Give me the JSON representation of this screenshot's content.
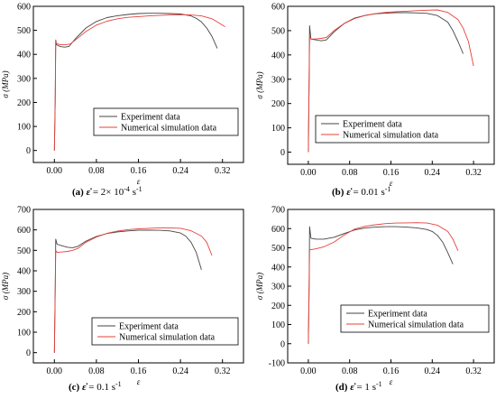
{
  "colors": {
    "experiment": "#444444",
    "simulation": "#e8403a",
    "axis": "#000000"
  },
  "chart_data": [
    {
      "type": "line",
      "xlabel": "ε",
      "ylabel": "σ (MPa)",
      "xlim": [
        -0.04,
        0.36
      ],
      "ylim": [
        -50,
        600
      ],
      "xticks": [
        0.0,
        0.08,
        0.16,
        0.24,
        0.32
      ],
      "xtick_labels": [
        "0.00",
        "0.08",
        "0.16",
        "0.24",
        "0.32"
      ],
      "yticks": [
        0,
        100,
        200,
        300,
        400,
        500,
        600
      ],
      "ytick_labels": [
        "0",
        "100",
        "200",
        "300",
        "400",
        "500",
        "600"
      ],
      "grid": false,
      "legend_position": "bottom-right",
      "caption": {
        "letter": "(a)",
        "symbol": "ε̇",
        "text": "= 2× 10",
        "sup": "-4",
        "unit": "s",
        "unit_sup": "-1"
      },
      "series": [
        {
          "name": "Experiment data",
          "color": "experiment",
          "x": [
            0.0,
            0.0015,
            0.0025,
            0.004,
            0.012,
            0.02,
            0.028,
            0.04,
            0.06,
            0.08,
            0.1,
            0.12,
            0.14,
            0.16,
            0.18,
            0.2,
            0.22,
            0.24,
            0.26,
            0.27,
            0.28,
            0.29,
            0.3,
            0.305,
            0.31
          ],
          "y": [
            0,
            200,
            460,
            440,
            432,
            430,
            433,
            465,
            510,
            537,
            553,
            561,
            566,
            570,
            571,
            571,
            570,
            568,
            560,
            550,
            535,
            510,
            475,
            450,
            425
          ]
        },
        {
          "name": "Numerical simulation data",
          "color": "simulation",
          "x": [
            0.0,
            0.0015,
            0.0025,
            0.004,
            0.012,
            0.02,
            0.03,
            0.04,
            0.06,
            0.08,
            0.1,
            0.12,
            0.14,
            0.16,
            0.18,
            0.2,
            0.22,
            0.24,
            0.26,
            0.28,
            0.3,
            0.31,
            0.325
          ],
          "y": [
            0,
            200,
            460,
            445,
            440,
            440,
            443,
            460,
            495,
            522,
            538,
            548,
            554,
            557,
            560,
            562,
            564,
            565,
            564,
            560,
            548,
            535,
            515
          ]
        }
      ]
    },
    {
      "type": "line",
      "xlabel": "ε",
      "ylabel": "σ (MPa)",
      "xlim": [
        -0.04,
        0.36
      ],
      "ylim": [
        -50,
        600
      ],
      "xticks": [
        0.0,
        0.08,
        0.16,
        0.24,
        0.32
      ],
      "xtick_labels": [
        "0.00",
        "0.08",
        "0.16",
        "0.24",
        "0.32"
      ],
      "yticks": [
        0,
        100,
        200,
        300,
        400,
        500,
        600
      ],
      "ytick_labels": [
        "0",
        "100",
        "200",
        "300",
        "400",
        "500",
        "600"
      ],
      "grid": false,
      "legend_position": "bottom-right",
      "caption": {
        "letter": "(b)",
        "symbol": "ε̇",
        "text": "= 0.01",
        "sup": "",
        "unit": "s",
        "unit_sup": "-1"
      },
      "series": [
        {
          "name": "Experiment data",
          "color": "experiment",
          "x": [
            0.0,
            0.0015,
            0.0025,
            0.005,
            0.015,
            0.025,
            0.035,
            0.05,
            0.07,
            0.09,
            0.11,
            0.13,
            0.15,
            0.17,
            0.19,
            0.21,
            0.23,
            0.25,
            0.27,
            0.28,
            0.29,
            0.3
          ],
          "y": [
            0,
            300,
            520,
            465,
            462,
            458,
            462,
            495,
            530,
            552,
            563,
            569,
            572,
            574,
            574,
            573,
            571,
            562,
            535,
            500,
            455,
            405
          ]
        },
        {
          "name": "Numerical simulation data",
          "color": "simulation",
          "x": [
            0.0,
            0.0015,
            0.0025,
            0.005,
            0.015,
            0.025,
            0.035,
            0.05,
            0.07,
            0.09,
            0.11,
            0.13,
            0.15,
            0.17,
            0.19,
            0.21,
            0.23,
            0.25,
            0.27,
            0.29,
            0.3,
            0.31,
            0.32
          ],
          "y": [
            0,
            300,
            480,
            465,
            466,
            468,
            472,
            500,
            530,
            550,
            562,
            570,
            575,
            578,
            580,
            582,
            584,
            585,
            575,
            545,
            510,
            455,
            355
          ]
        }
      ]
    },
    {
      "type": "line",
      "xlabel": "ε",
      "ylabel": "σ (MPa)",
      "xlim": [
        -0.04,
        0.36
      ],
      "ylim": [
        -50,
        700
      ],
      "xticks": [
        0.0,
        0.08,
        0.16,
        0.24,
        0.32
      ],
      "xtick_labels": [
        "0.00",
        "0.08",
        "0.16",
        "0.24",
        "0.32"
      ],
      "yticks": [
        0,
        100,
        200,
        300,
        400,
        500,
        600,
        700
      ],
      "ytick_labels": [
        "0",
        "100",
        "200",
        "300",
        "400",
        "500",
        "600",
        "700"
      ],
      "grid": false,
      "legend_position": "bottom-right",
      "caption": {
        "letter": "(c)",
        "symbol": "ε̇",
        "text": "= 0.1",
        "sup": "",
        "unit": "s",
        "unit_sup": "-1"
      },
      "series": [
        {
          "name": "Experiment data",
          "color": "experiment",
          "x": [
            0.0,
            0.0015,
            0.0025,
            0.005,
            0.015,
            0.025,
            0.035,
            0.045,
            0.06,
            0.08,
            0.1,
            0.12,
            0.14,
            0.16,
            0.18,
            0.2,
            0.22,
            0.24,
            0.25,
            0.26,
            0.27,
            0.28
          ],
          "y": [
            0,
            300,
            555,
            530,
            522,
            515,
            513,
            520,
            545,
            568,
            582,
            590,
            595,
            598,
            599,
            598,
            595,
            585,
            570,
            540,
            490,
            405
          ]
        },
        {
          "name": "Numerical simulation data",
          "color": "simulation",
          "x": [
            0.0,
            0.0015,
            0.0025,
            0.005,
            0.015,
            0.025,
            0.035,
            0.045,
            0.06,
            0.08,
            0.1,
            0.12,
            0.14,
            0.16,
            0.18,
            0.2,
            0.22,
            0.24,
            0.26,
            0.28,
            0.29,
            0.3
          ],
          "y": [
            0,
            300,
            500,
            490,
            492,
            495,
            500,
            510,
            540,
            565,
            583,
            594,
            601,
            605,
            608,
            610,
            610,
            608,
            596,
            570,
            540,
            475
          ]
        }
      ]
    },
    {
      "type": "line",
      "xlabel": "ε",
      "ylabel": "σ (MPa)",
      "xlim": [
        -0.04,
        0.36
      ],
      "ylim": [
        -100,
        700
      ],
      "xticks": [
        0.0,
        0.08,
        0.16,
        0.24,
        0.32
      ],
      "xtick_labels": [
        "0.00",
        "0.08",
        "0.16",
        "0.24",
        "0.32"
      ],
      "yticks": [
        -100,
        0,
        100,
        200,
        300,
        400,
        500,
        600,
        700
      ],
      "ytick_labels": [
        "-100",
        "0",
        "100",
        "200",
        "300",
        "400",
        "500",
        "600",
        "700"
      ],
      "grid": false,
      "legend_position": "bottom-right",
      "caption": {
        "letter": "(d)",
        "symbol": "ε̇",
        "text": "= 1",
        "sup": "",
        "unit": "s",
        "unit_sup": "-1"
      },
      "series": [
        {
          "name": "Experiment data",
          "color": "experiment",
          "x": [
            0.0,
            0.0015,
            0.0025,
            0.005,
            0.015,
            0.03,
            0.05,
            0.07,
            0.09,
            0.11,
            0.13,
            0.15,
            0.17,
            0.19,
            0.21,
            0.23,
            0.24,
            0.25,
            0.26,
            0.27,
            0.28
          ],
          "y": [
            0,
            300,
            610,
            550,
            545,
            545,
            555,
            575,
            593,
            603,
            608,
            610,
            610,
            608,
            604,
            595,
            585,
            565,
            530,
            475,
            415
          ]
        },
        {
          "name": "Numerical simulation data",
          "color": "simulation",
          "x": [
            0.0,
            0.0015,
            0.0025,
            0.005,
            0.015,
            0.03,
            0.05,
            0.07,
            0.09,
            0.11,
            0.13,
            0.15,
            0.17,
            0.19,
            0.21,
            0.23,
            0.25,
            0.27,
            0.28,
            0.29
          ],
          "y": [
            0,
            300,
            490,
            490,
            495,
            505,
            530,
            568,
            598,
            612,
            620,
            626,
            629,
            630,
            631,
            629,
            618,
            585,
            545,
            485
          ]
        }
      ]
    }
  ]
}
